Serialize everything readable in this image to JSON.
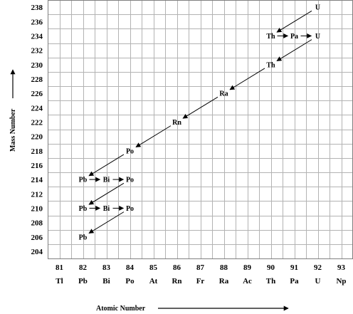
{
  "chart_data": {
    "type": "diagram",
    "xlabel": "Atomic Number",
    "ylabel": "Mass Number",
    "x_ticks": [
      81,
      82,
      83,
      84,
      85,
      86,
      87,
      88,
      89,
      90,
      91,
      92,
      93
    ],
    "x_elements": [
      "Tl",
      "Pb",
      "Bi",
      "Po",
      "At",
      "Rn",
      "Fr",
      "Ra",
      "Ac",
      "Th",
      "Pa",
      "U",
      "Np"
    ],
    "y_ticks": [
      204,
      206,
      208,
      210,
      212,
      214,
      216,
      218,
      220,
      222,
      224,
      226,
      228,
      230,
      232,
      234,
      236,
      238
    ],
    "xlim": [
      80.5,
      93.5
    ],
    "ylim": [
      203,
      239
    ],
    "nuclides": [
      {
        "symbol": "U",
        "z": 92,
        "a": 238
      },
      {
        "symbol": "Th",
        "z": 90,
        "a": 234
      },
      {
        "symbol": "Pa",
        "z": 91,
        "a": 234
      },
      {
        "symbol": "U",
        "z": 92,
        "a": 234
      },
      {
        "symbol": "Th",
        "z": 90,
        "a": 230
      },
      {
        "symbol": "Ra",
        "z": 88,
        "a": 226
      },
      {
        "symbol": "Rn",
        "z": 86,
        "a": 222
      },
      {
        "symbol": "Po",
        "z": 84,
        "a": 218
      },
      {
        "symbol": "Pb",
        "z": 82,
        "a": 214
      },
      {
        "symbol": "Bi",
        "z": 83,
        "a": 214
      },
      {
        "symbol": "Po",
        "z": 84,
        "a": 214
      },
      {
        "symbol": "Pb",
        "z": 82,
        "a": 210
      },
      {
        "symbol": "Bi",
        "z": 83,
        "a": 210
      },
      {
        "symbol": "Po",
        "z": 84,
        "a": 210
      },
      {
        "symbol": "Pb",
        "z": 82,
        "a": 206
      }
    ],
    "decays": [
      {
        "from": [
          92,
          238
        ],
        "to": [
          90,
          234
        ],
        "mode": "alpha"
      },
      {
        "from": [
          90,
          234
        ],
        "to": [
          91,
          234
        ],
        "mode": "beta"
      },
      {
        "from": [
          91,
          234
        ],
        "to": [
          92,
          234
        ],
        "mode": "beta"
      },
      {
        "from": [
          92,
          234
        ],
        "to": [
          90,
          230
        ],
        "mode": "alpha"
      },
      {
        "from": [
          90,
          230
        ],
        "to": [
          88,
          226
        ],
        "mode": "alpha"
      },
      {
        "from": [
          88,
          226
        ],
        "to": [
          86,
          222
        ],
        "mode": "alpha"
      },
      {
        "from": [
          86,
          222
        ],
        "to": [
          84,
          218
        ],
        "mode": "alpha"
      },
      {
        "from": [
          84,
          218
        ],
        "to": [
          82,
          214
        ],
        "mode": "alpha"
      },
      {
        "from": [
          82,
          214
        ],
        "to": [
          83,
          214
        ],
        "mode": "beta"
      },
      {
        "from": [
          83,
          214
        ],
        "to": [
          84,
          214
        ],
        "mode": "beta"
      },
      {
        "from": [
          84,
          214
        ],
        "to": [
          82,
          210
        ],
        "mode": "alpha"
      },
      {
        "from": [
          82,
          210
        ],
        "to": [
          83,
          210
        ],
        "mode": "beta"
      },
      {
        "from": [
          83,
          210
        ],
        "to": [
          84,
          210
        ],
        "mode": "beta"
      },
      {
        "from": [
          84,
          210
        ],
        "to": [
          82,
          206
        ],
        "mode": "alpha"
      }
    ]
  }
}
